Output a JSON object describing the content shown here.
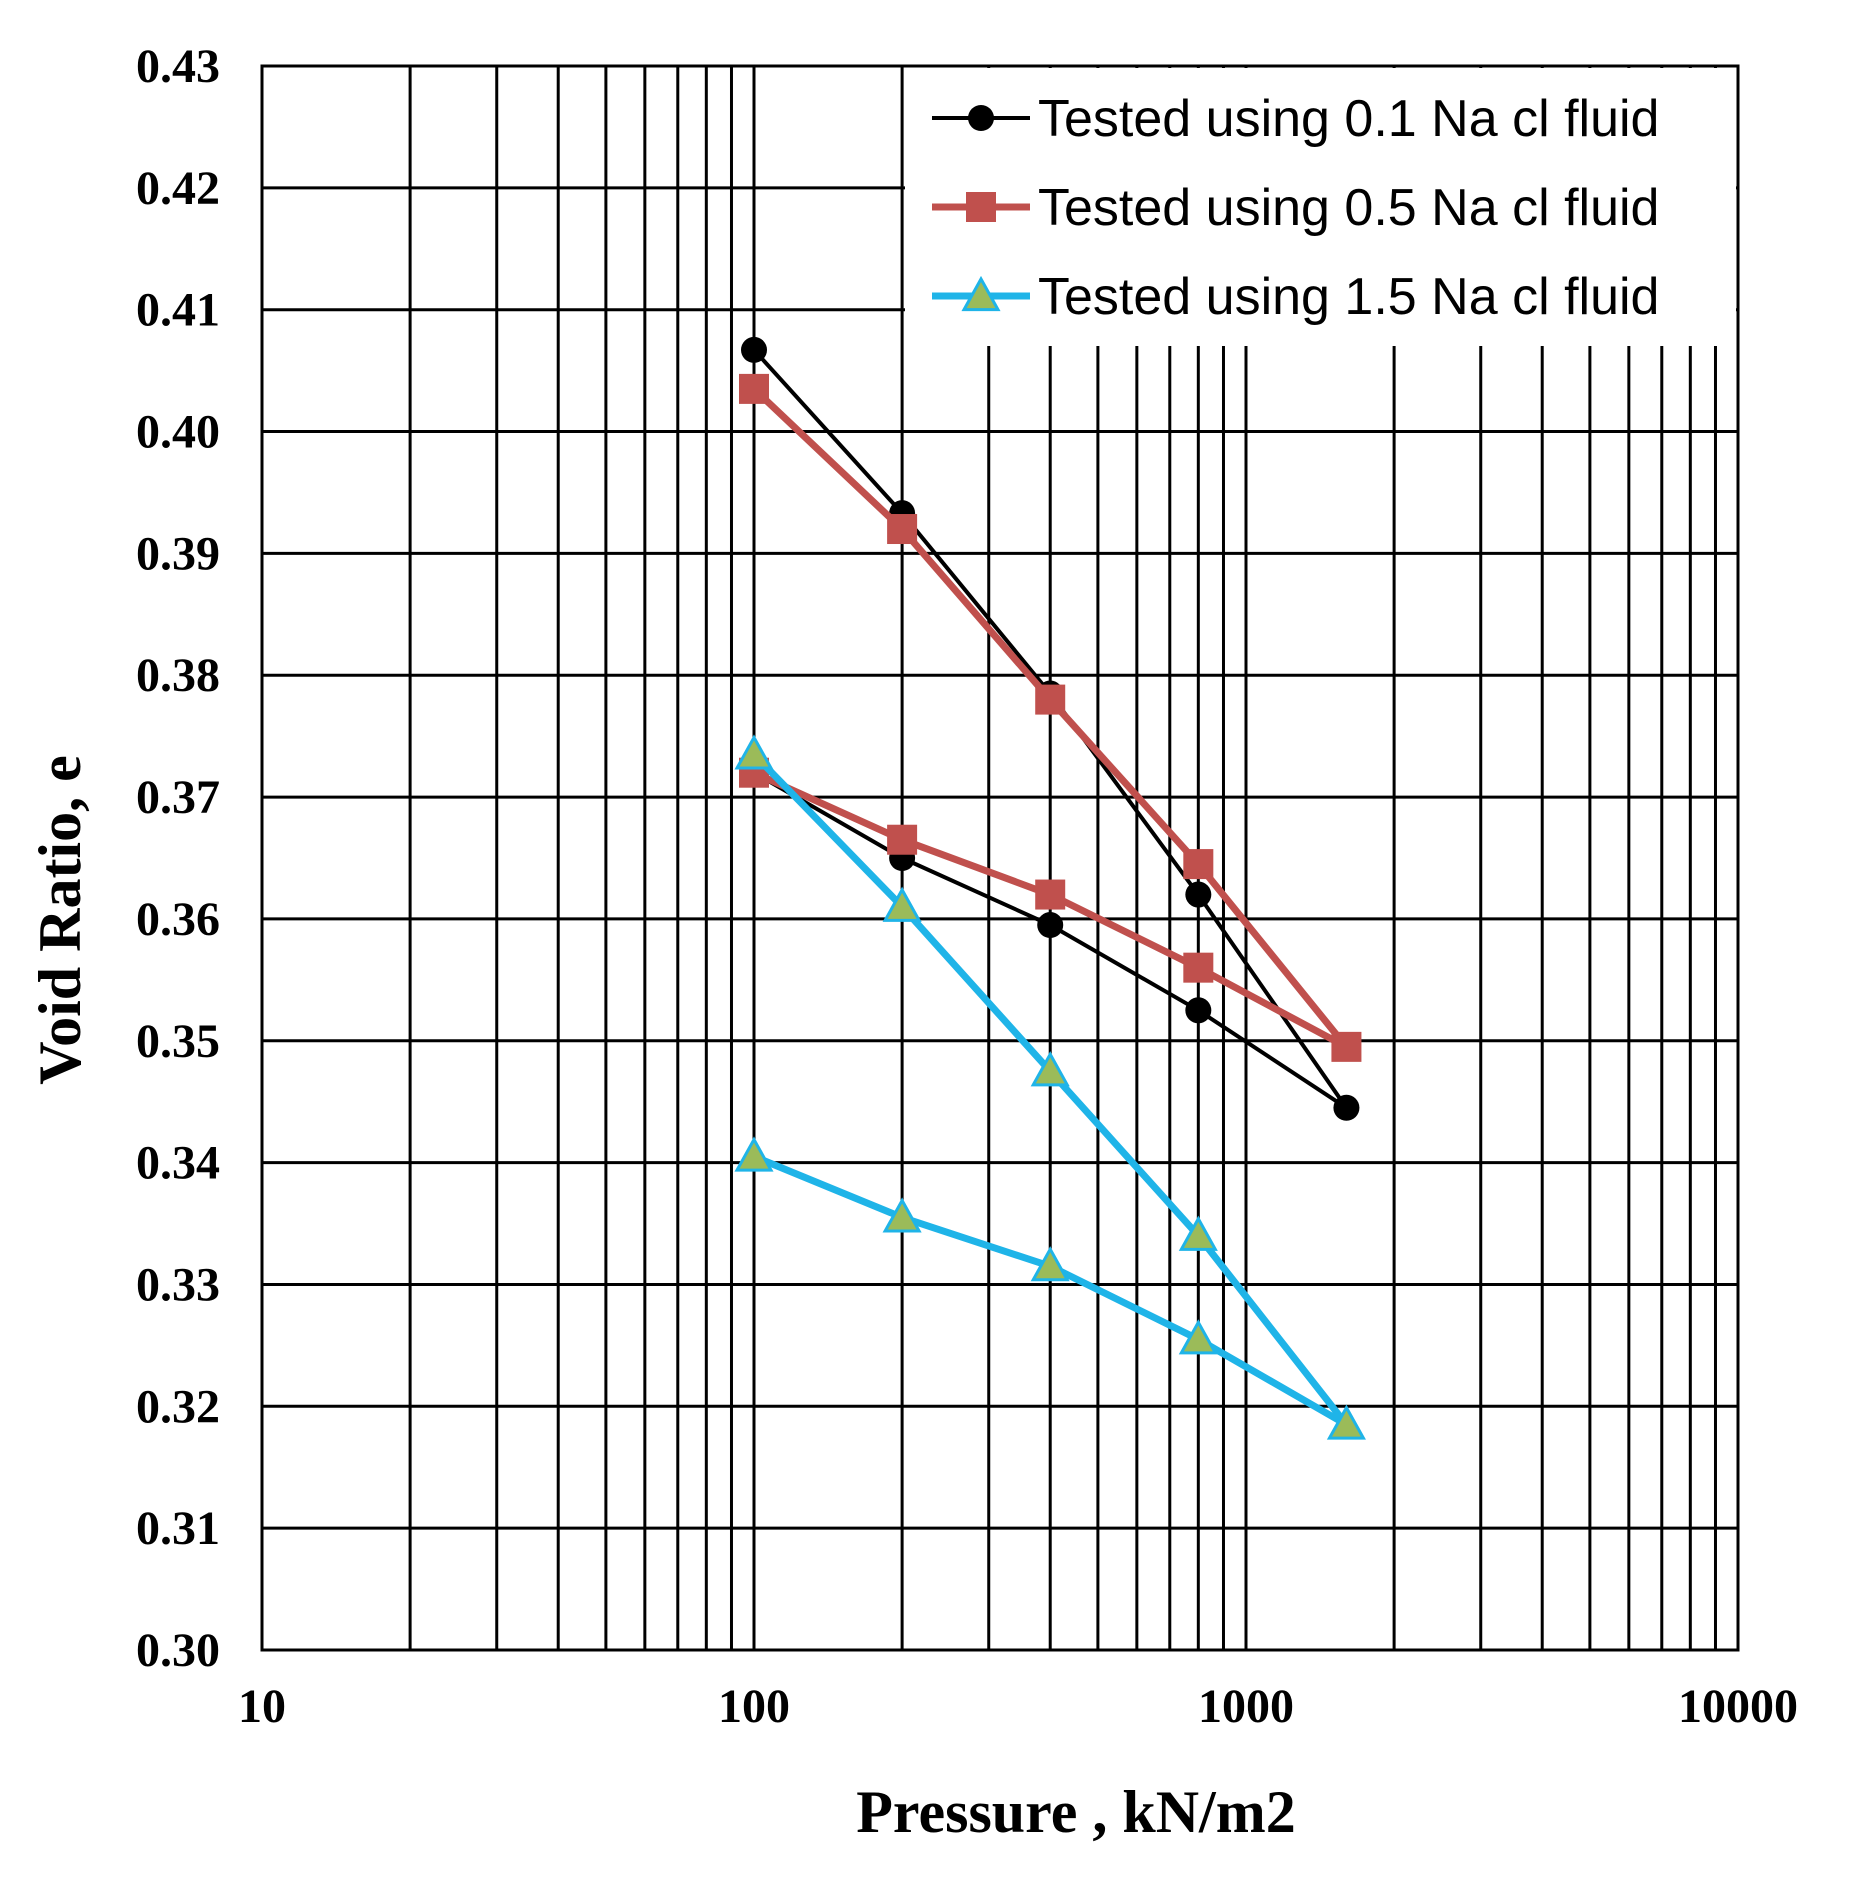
{
  "chart_data": {
    "type": "line",
    "xscale": "log",
    "xlim": [
      10,
      10000
    ],
    "ylim": [
      0.3,
      0.43
    ],
    "xlabel": "Pressure , kN/m2",
    "ylabel": "Void Ratio, e",
    "grid": true,
    "legend_position": "top-right",
    "x_ticks": [
      10,
      100,
      1000,
      10000
    ],
    "x_tick_labels": [
      "10",
      "100",
      "1000",
      "10000"
    ],
    "y_ticks": [
      0.3,
      0.31,
      0.32,
      0.33,
      0.34,
      0.35,
      0.36,
      0.37,
      0.38,
      0.39,
      0.4,
      0.41,
      0.42,
      0.43
    ],
    "y_tick_labels": [
      "0.30",
      "0.31",
      "0.32",
      "0.33",
      "0.34",
      "0.35",
      "0.36",
      "0.37",
      "0.38",
      "0.39",
      "0.40",
      "0.41",
      "0.42",
      "0.43"
    ],
    "series": [
      {
        "name": "Tested using 0.1 Na cl fluid",
        "color": "#000000",
        "marker": "circle",
        "x": [
          100,
          200,
          400,
          800,
          1600,
          800,
          400,
          200,
          100
        ],
        "y": [
          0.4067,
          0.3933,
          0.3785,
          0.362,
          0.3445,
          0.3525,
          0.3595,
          0.365,
          0.372
        ]
      },
      {
        "name": "Tested using 0.5 Na cl fluid",
        "color": "#c0504d",
        "marker": "square",
        "x": [
          100,
          200,
          400,
          800,
          1600,
          800,
          400,
          200,
          100
        ],
        "y": [
          0.4035,
          0.392,
          0.378,
          0.3645,
          0.3495,
          0.356,
          0.362,
          0.3665,
          0.372
        ]
      },
      {
        "name": "Tested using 1.5 Na cl fluid",
        "color": "#1fb4e8",
        "marker": "triangle",
        "x": [
          100,
          200,
          400,
          800,
          1600,
          800,
          400,
          200,
          100
        ],
        "y": [
          0.3735,
          0.361,
          0.3475,
          0.334,
          0.3185,
          0.3255,
          0.3315,
          0.3355,
          0.3405
        ]
      }
    ]
  }
}
